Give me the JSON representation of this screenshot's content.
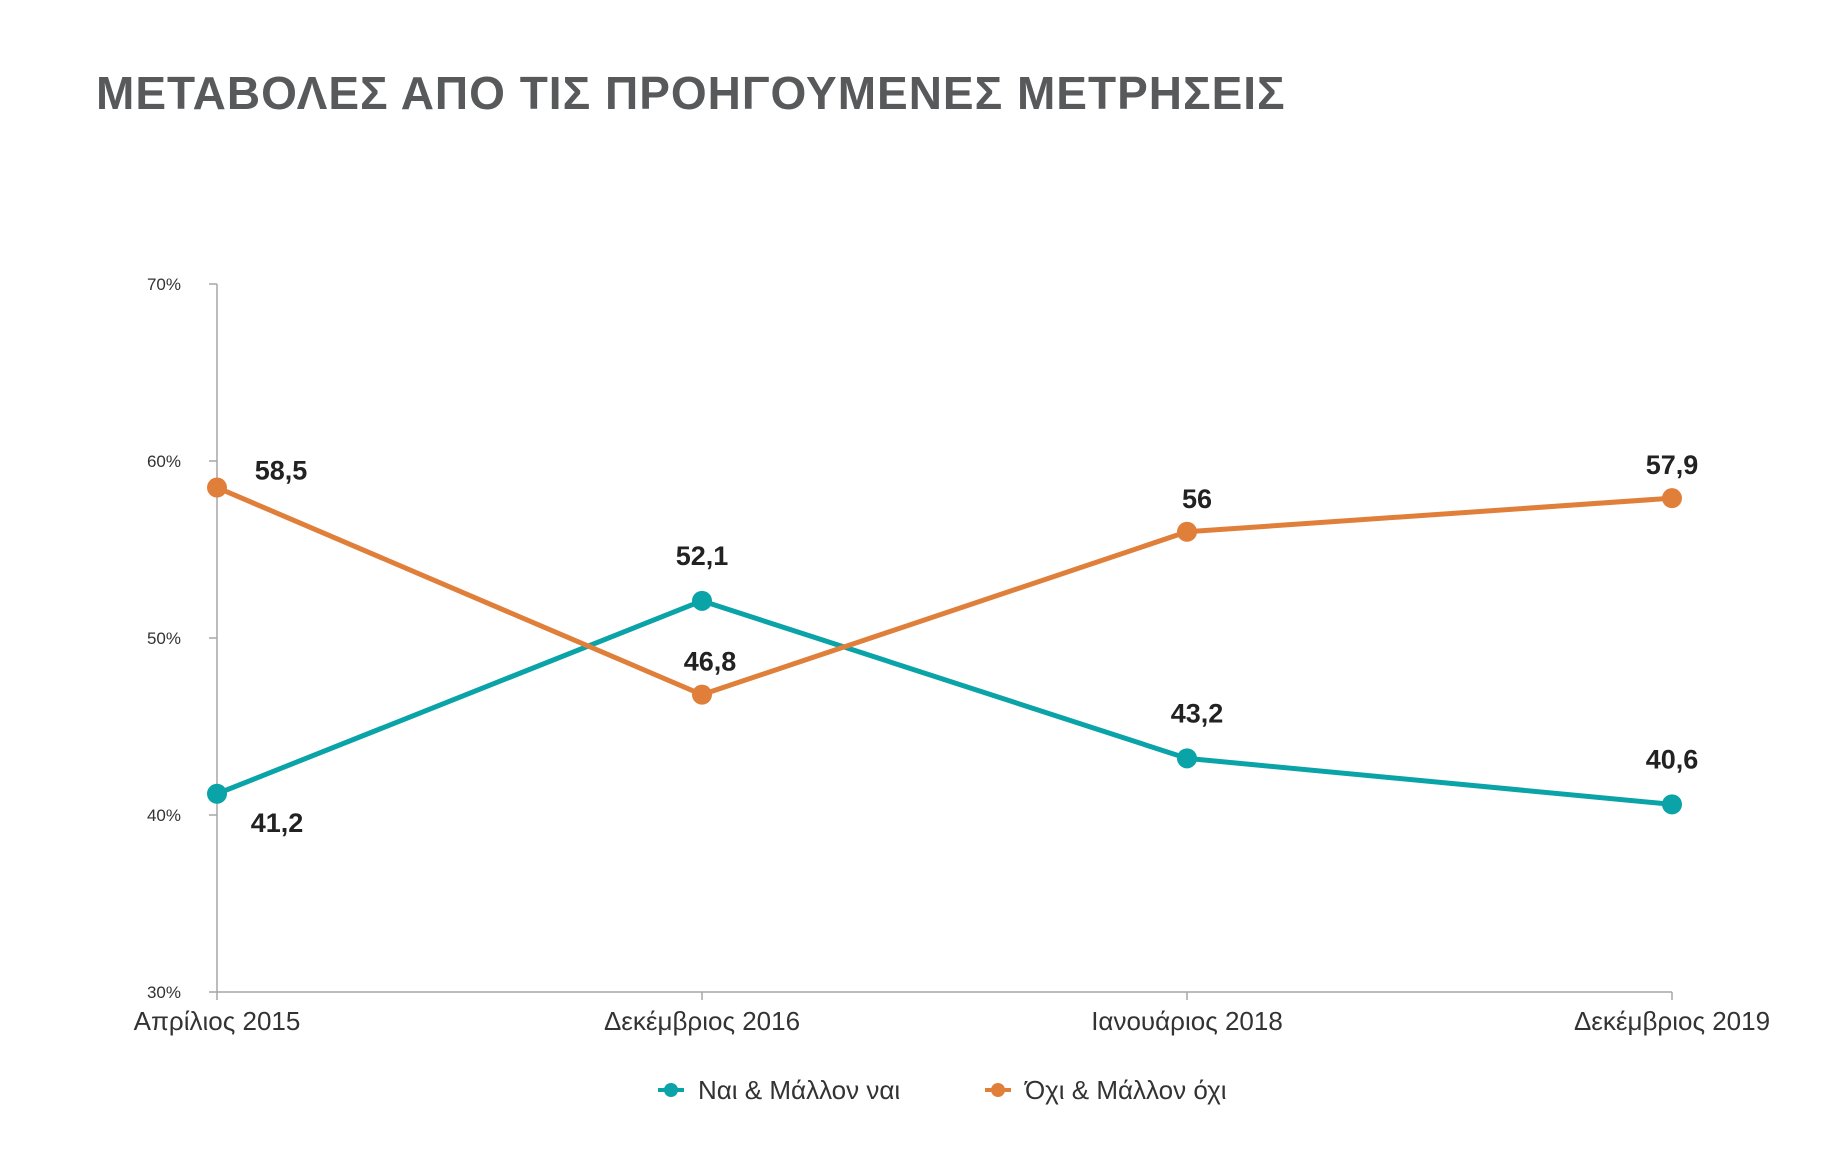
{
  "page": {
    "title": "ΜΕΤΑΒΟΛΕΣ ΑΠΟ ΤΙΣ ΠΡΟΗΓΟΥΜΕΝΕΣ ΜΕΤΡΗΣΕΙΣ"
  },
  "chart_data": {
    "type": "line",
    "title": "ΜΕΤΑΒΟΛΕΣ ΑΠΟ ΤΙΣ ΠΡΟΗΓΟΥΜΕΝΕΣ ΜΕΤΡΗΣΕΙΣ",
    "xlabel": "",
    "ylabel": "",
    "categories": [
      "Απρίλιος 2015",
      "Δεκέμβριος 2016",
      "Ιανουάριος 2018",
      "Δεκέμβριος 2019"
    ],
    "ylim": [
      30,
      70
    ],
    "yticks": [
      30,
      40,
      50,
      60,
      70
    ],
    "ytick_labels": [
      "30%",
      "40%",
      "50%",
      "60%",
      "70%"
    ],
    "grid": false,
    "legend_position": "bottom",
    "series": [
      {
        "name": "Ναι & Μάλλον ναι",
        "color": "#0aa3a8",
        "values": [
          41.2,
          52.1,
          43.2,
          40.6
        ],
        "labels": [
          "41,2",
          "52,1",
          "43,2",
          "40,6"
        ]
      },
      {
        "name": "Όχι & Μάλλον όχι",
        "color": "#e07f3a",
        "values": [
          58.5,
          46.8,
          56,
          57.9
        ],
        "labels": [
          "58,5",
          "46,8",
          "56",
          "57,9"
        ]
      }
    ]
  }
}
